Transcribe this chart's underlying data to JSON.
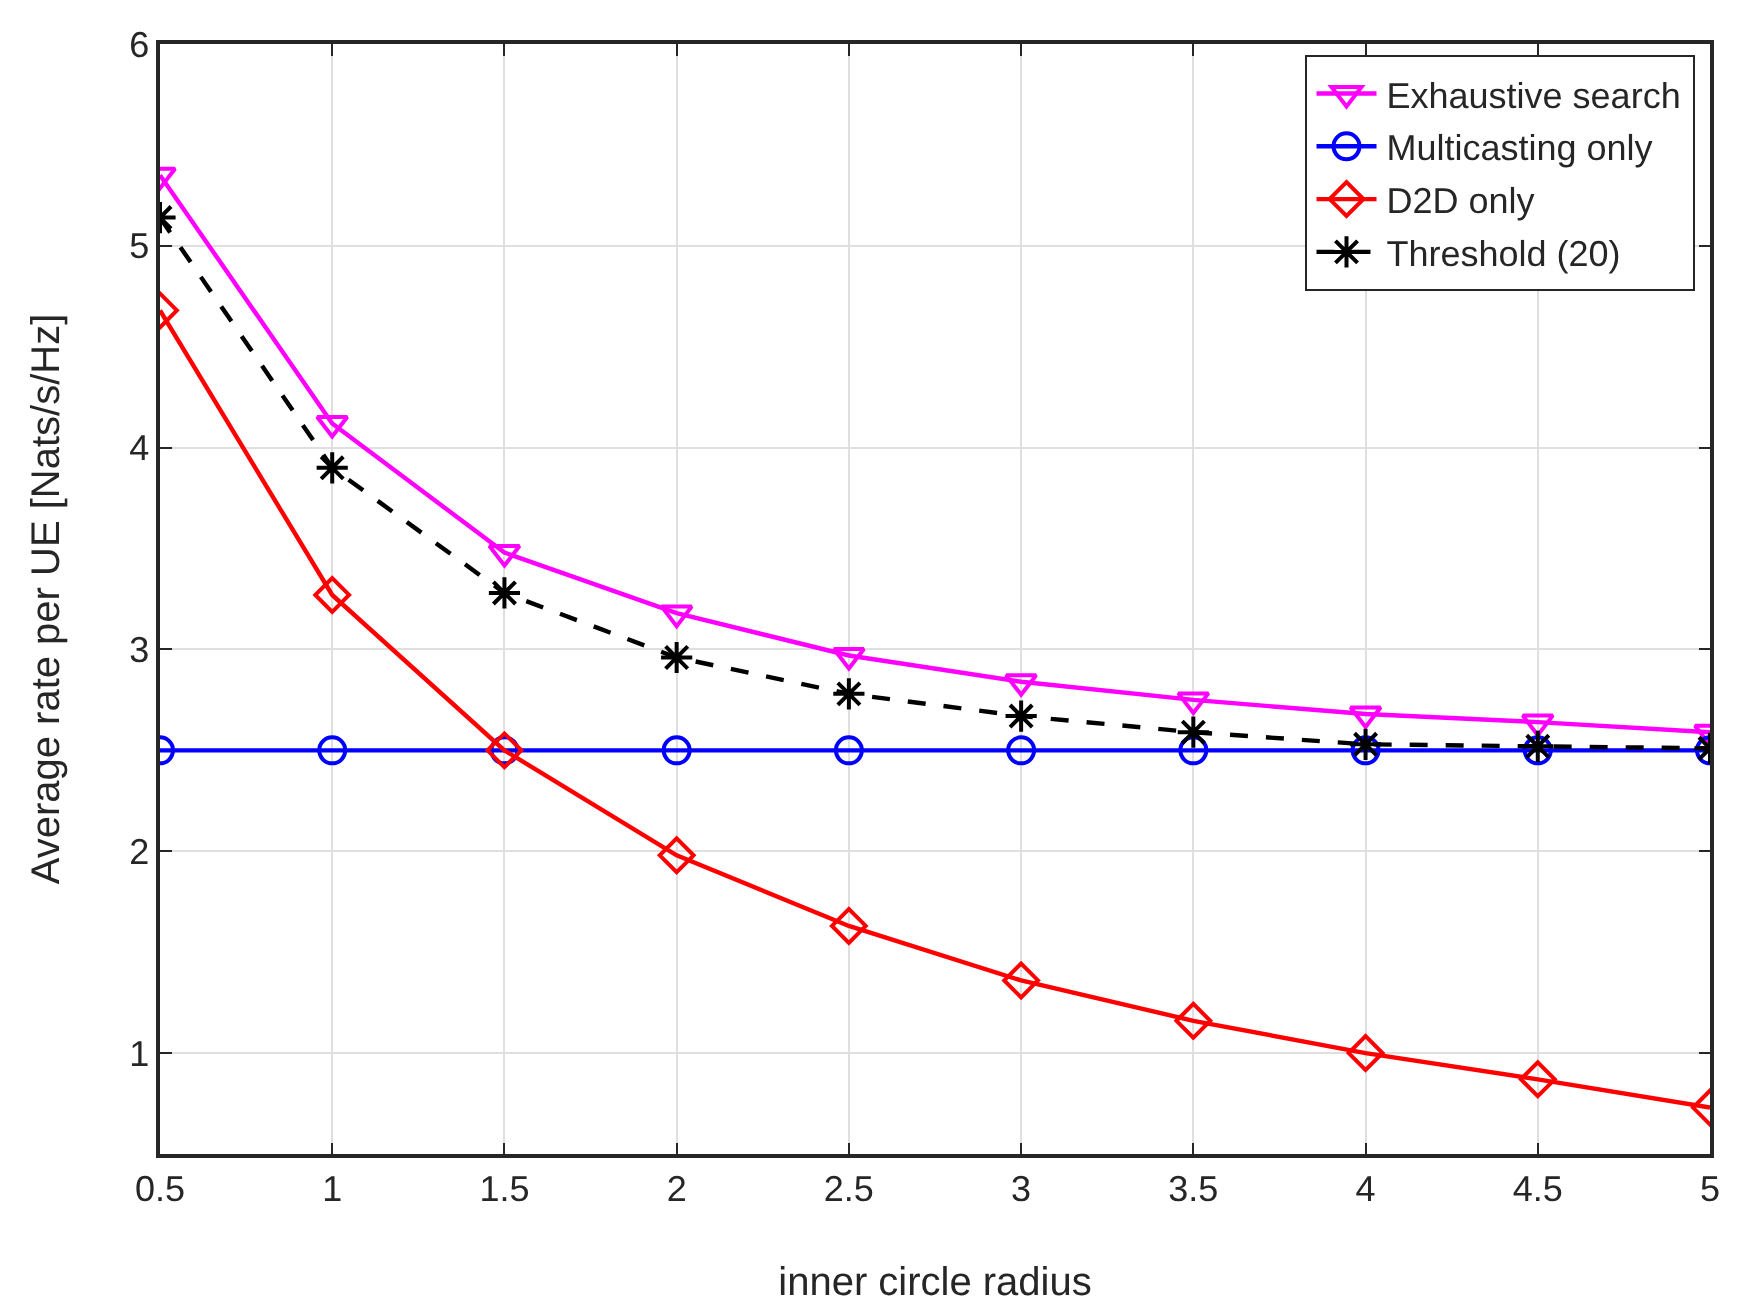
{
  "chart_data": {
    "type": "line",
    "xlabel": "inner circle radius",
    "ylabel": "Average rate per UE [Nats/s/Hz]",
    "x": [
      0.5,
      1,
      1.5,
      2,
      2.5,
      3,
      3.5,
      4,
      4.5,
      5
    ],
    "series": [
      {
        "name": "Exhaustive search",
        "color": "#ff00ff",
        "marker": "triangle",
        "line_style": "solid",
        "values": [
          5.35,
          4.12,
          3.48,
          3.18,
          2.97,
          2.84,
          2.75,
          2.68,
          2.64,
          2.59
        ]
      },
      {
        "name": "Multicasting only",
        "color": "#0000ff",
        "marker": "circle",
        "line_style": "solid",
        "values": [
          2.5,
          2.5,
          2.5,
          2.5,
          2.5,
          2.5,
          2.5,
          2.5,
          2.5,
          2.5
        ]
      },
      {
        "name": "D2D only",
        "color": "#ff0000",
        "marker": "diamond",
        "line_style": "solid",
        "values": [
          4.68,
          3.27,
          2.5,
          1.98,
          1.63,
          1.36,
          1.16,
          1.0,
          0.87,
          0.73
        ]
      },
      {
        "name": "Threshold (20)",
        "color": "#000000",
        "marker": "cross",
        "line_style": "dashed",
        "values": [
          5.14,
          3.9,
          3.28,
          2.96,
          2.78,
          2.67,
          2.59,
          2.53,
          2.52,
          2.51
        ]
      }
    ],
    "xlim": [
      0.5,
      5
    ],
    "xticks": [
      0.5,
      1,
      1.5,
      2,
      2.5,
      3,
      3.5,
      4,
      4.5,
      5
    ],
    "ylim": [
      0.5,
      6
    ],
    "yticks": [
      1,
      2,
      3,
      4,
      5,
      6
    ],
    "grid": true,
    "legend": "top right"
  }
}
